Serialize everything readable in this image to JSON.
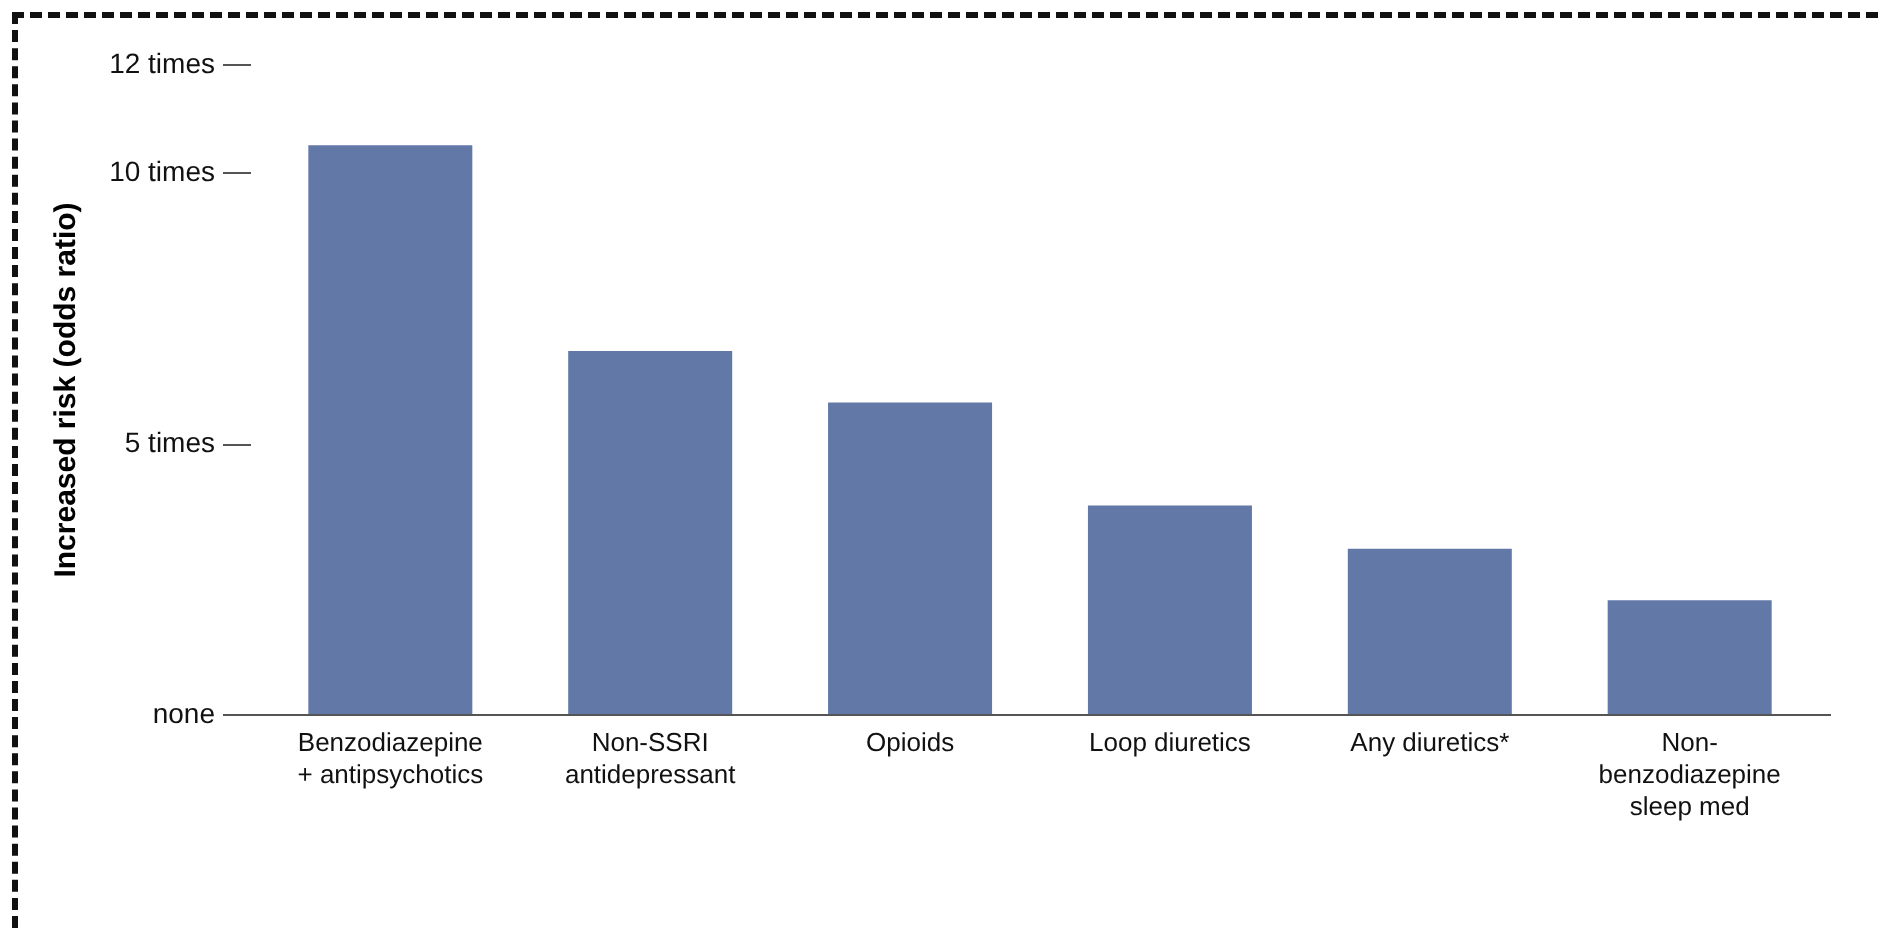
{
  "chart_data": {
    "type": "bar",
    "ylabel": "Increased risk (odds ratio)",
    "categories": [
      "Benzodiazepine\n+ antipsychotics",
      "Non-SSRI\nantidepressant",
      "Opioids",
      "Loop diuretics",
      "Any diuretics*",
      "Non-\nbenzodiazepine\nsleep med"
    ],
    "values": [
      10.5,
      6.7,
      5.75,
      3.85,
      3.05,
      2.1
    ],
    "color": "#6279a8",
    "ylim": [
      0,
      12
    ],
    "yticks": [
      {
        "value": 0,
        "label": "none"
      },
      {
        "value": 5,
        "label": "5 times"
      },
      {
        "value": 10,
        "label": "10 times"
      },
      {
        "value": 12,
        "label": "12 times"
      }
    ],
    "grid": false
  }
}
